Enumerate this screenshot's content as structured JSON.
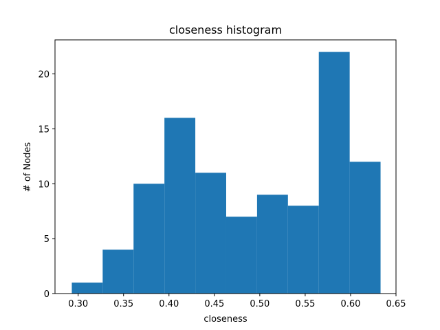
{
  "chart_data": {
    "type": "bar",
    "title": "closeness histogram",
    "xlabel": "closeness",
    "ylabel": "# of Nodes",
    "bin_edges": [
      0.293,
      0.327,
      0.361,
      0.395,
      0.429,
      0.463,
      0.497,
      0.531,
      0.565,
      0.599,
      0.633
    ],
    "values": [
      1,
      4,
      10,
      16,
      11,
      7,
      9,
      8,
      22,
      12
    ],
    "xlim": [
      0.2745,
      0.65
    ],
    "ylim": [
      0,
      23.1
    ],
    "xticks": [
      0.3,
      0.35,
      0.4,
      0.45,
      0.5,
      0.55,
      0.6,
      0.65
    ],
    "xtick_labels": [
      "0.30",
      "0.35",
      "0.40",
      "0.45",
      "0.50",
      "0.55",
      "0.60",
      "0.65"
    ],
    "yticks": [
      0,
      5,
      10,
      15,
      20
    ],
    "ytick_labels": [
      "0",
      "5",
      "10",
      "15",
      "20"
    ],
    "grid": false,
    "colors": {
      "bar": "#1f77b4",
      "axis": "#000000",
      "background": "#ffffff"
    }
  }
}
